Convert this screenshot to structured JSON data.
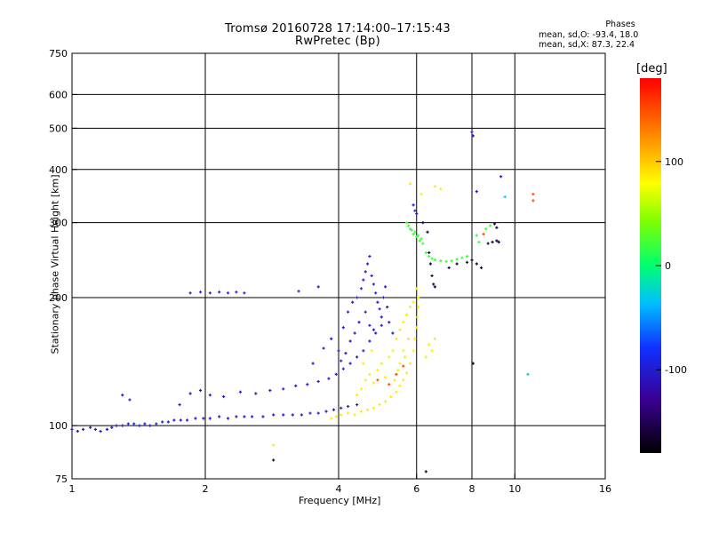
{
  "chart_data": {
    "type": "scatter",
    "title": "Tromsø 20160728 17:14:00–17:15:43",
    "subtitle": "RwPretec (Bp)",
    "xlabel": "Frequency [MHz]",
    "ylabel": "Stationary phase Virtual Height [km]",
    "x_scale": "log",
    "y_scale": "log",
    "xlim": [
      1,
      16
    ],
    "ylim": [
      75,
      750
    ],
    "x_ticks": [
      1,
      2,
      4,
      6,
      8,
      10,
      16
    ],
    "x_tick_labels": [
      "1",
      "2",
      "4",
      "6",
      "8",
      "10",
      "16"
    ],
    "y_ticks": [
      75,
      100,
      200,
      300,
      400,
      500,
      600,
      750
    ],
    "y_tick_labels": [
      "75",
      "100",
      "200",
      "300",
      "400",
      "500",
      "600",
      "750"
    ],
    "grid": true,
    "phase_header": {
      "title": "Phases",
      "o_line": "mean, sd,O: -93.4, 18.0",
      "x_line": "mean, sd,X:  87.3, 22.4"
    },
    "colorbar": {
      "unit": "[deg]",
      "range": [
        -180,
        180
      ],
      "ticks": [
        100,
        0,
        -100
      ],
      "tick_labels": [
        "100",
        "0",
        "-100"
      ]
    },
    "series": [
      {
        "color_phase_deg": -100,
        "points": [
          [
            1.0,
            98
          ],
          [
            1.03,
            97
          ],
          [
            1.06,
            98
          ],
          [
            1.1,
            99
          ],
          [
            1.13,
            98
          ],
          [
            1.16,
            97
          ],
          [
            1.2,
            98
          ],
          [
            1.23,
            99
          ],
          [
            1.26,
            100
          ],
          [
            1.3,
            100
          ],
          [
            1.34,
            101
          ],
          [
            1.38,
            101
          ],
          [
            1.42,
            100
          ],
          [
            1.46,
            101
          ],
          [
            1.5,
            100
          ],
          [
            1.55,
            101
          ],
          [
            1.6,
            102
          ],
          [
            1.65,
            102
          ],
          [
            1.7,
            103
          ],
          [
            1.76,
            103
          ],
          [
            1.82,
            103
          ],
          [
            1.9,
            104
          ],
          [
            1.98,
            104
          ],
          [
            2.05,
            104
          ],
          [
            2.15,
            105
          ],
          [
            2.25,
            104
          ],
          [
            2.35,
            105
          ],
          [
            2.45,
            105
          ],
          [
            2.55,
            105
          ],
          [
            2.7,
            105
          ],
          [
            2.85,
            106
          ],
          [
            3.0,
            106
          ],
          [
            3.15,
            106
          ],
          [
            3.3,
            106
          ],
          [
            3.45,
            107
          ],
          [
            3.6,
            107
          ],
          [
            3.75,
            108
          ],
          [
            3.9,
            109
          ],
          [
            4.05,
            110
          ],
          [
            4.2,
            111
          ],
          [
            4.4,
            112
          ],
          [
            1.3,
            118
          ],
          [
            1.35,
            115
          ],
          [
            1.75,
            112
          ],
          [
            1.85,
            119
          ],
          [
            1.95,
            121
          ],
          [
            2.05,
            118
          ],
          [
            2.2,
            117
          ],
          [
            2.4,
            120
          ],
          [
            2.6,
            119
          ],
          [
            2.8,
            121
          ],
          [
            3.0,
            122
          ],
          [
            3.2,
            124
          ],
          [
            3.4,
            125
          ],
          [
            3.6,
            127
          ],
          [
            3.8,
            129
          ],
          [
            3.95,
            132
          ],
          [
            4.1,
            136
          ],
          [
            4.25,
            140
          ],
          [
            4.4,
            145
          ],
          [
            4.55,
            150
          ],
          [
            4.7,
            158
          ],
          [
            4.85,
            165
          ],
          [
            5.0,
            172
          ],
          [
            1.85,
            205
          ],
          [
            1.95,
            206
          ],
          [
            2.05,
            205
          ],
          [
            2.15,
            206
          ],
          [
            2.25,
            205
          ],
          [
            2.35,
            206
          ],
          [
            2.45,
            205
          ],
          [
            3.25,
            207
          ],
          [
            3.6,
            212
          ],
          [
            3.5,
            140
          ],
          [
            3.7,
            152
          ],
          [
            3.85,
            160
          ],
          [
            4.0,
            150
          ],
          [
            4.1,
            170
          ],
          [
            4.2,
            185
          ],
          [
            4.3,
            195
          ],
          [
            4.4,
            200
          ],
          [
            4.5,
            210
          ],
          [
            4.55,
            220
          ],
          [
            4.6,
            230
          ],
          [
            4.65,
            240
          ],
          [
            4.7,
            250
          ],
          [
            4.75,
            225
          ],
          [
            4.8,
            215
          ],
          [
            4.85,
            205
          ],
          [
            4.9,
            195
          ],
          [
            4.95,
            188
          ],
          [
            5.0,
            180
          ],
          [
            5.05,
            200
          ],
          [
            5.1,
            212
          ],
          [
            5.15,
            190
          ],
          [
            4.45,
            175
          ],
          [
            4.35,
            165
          ],
          [
            4.25,
            158
          ],
          [
            4.15,
            148
          ],
          [
            4.05,
            142
          ],
          [
            5.2,
            175
          ],
          [
            5.3,
            165
          ],
          [
            4.6,
            185
          ],
          [
            4.7,
            172
          ],
          [
            4.8,
            168
          ],
          [
            5.9,
            330
          ],
          [
            5.95,
            320
          ],
          [
            6.0,
            315
          ],
          [
            8.0,
            490
          ],
          [
            8.05,
            480
          ],
          [
            9.3,
            385
          ],
          [
            8.2,
            355
          ]
        ]
      },
      {
        "color_phase_deg": 87,
        "points": [
          [
            3.85,
            104
          ],
          [
            3.95,
            105
          ],
          [
            4.05,
            106
          ],
          [
            4.2,
            107
          ],
          [
            4.35,
            106
          ],
          [
            4.5,
            108
          ],
          [
            4.65,
            109
          ],
          [
            4.8,
            110
          ],
          [
            4.95,
            112
          ],
          [
            5.1,
            114
          ],
          [
            5.25,
            117
          ],
          [
            5.4,
            120
          ],
          [
            5.5,
            124
          ],
          [
            5.6,
            128
          ],
          [
            5.7,
            133
          ],
          [
            5.8,
            140
          ],
          [
            5.9,
            150
          ],
          [
            5.95,
            160
          ],
          [
            6.0,
            170
          ],
          [
            6.02,
            180
          ],
          [
            6.05,
            190
          ],
          [
            6.05,
            200
          ],
          [
            6.0,
            210
          ],
          [
            4.4,
            118
          ],
          [
            4.5,
            122
          ],
          [
            4.6,
            128
          ],
          [
            4.7,
            132
          ],
          [
            4.8,
            126
          ],
          [
            4.9,
            135
          ],
          [
            5.0,
            140
          ],
          [
            5.1,
            130
          ],
          [
            5.2,
            145
          ],
          [
            5.3,
            150
          ],
          [
            5.4,
            160
          ],
          [
            5.5,
            168
          ],
          [
            5.6,
            175
          ],
          [
            5.7,
            182
          ],
          [
            5.5,
            140
          ],
          [
            5.6,
            150
          ],
          [
            5.8,
            190
          ],
          [
            5.9,
            195
          ],
          [
            5.75,
            160
          ],
          [
            5.65,
            145
          ],
          [
            5.45,
            135
          ],
          [
            5.35,
            128
          ],
          [
            4.55,
            140
          ],
          [
            4.75,
            150
          ],
          [
            6.4,
            155
          ],
          [
            6.5,
            150
          ],
          [
            6.3,
            145
          ],
          [
            6.6,
            160
          ],
          [
            5.8,
            370
          ],
          [
            6.15,
            350
          ],
          [
            2.85,
            90
          ],
          [
            6.6,
            365
          ],
          [
            6.8,
            360
          ]
        ]
      },
      {
        "color_phase_deg": 20,
        "points": [
          [
            5.7,
            300
          ],
          [
            5.8,
            290
          ],
          [
            5.9,
            282
          ],
          [
            6.0,
            278
          ],
          [
            6.1,
            272
          ],
          [
            6.2,
            268
          ],
          [
            5.75,
            295
          ],
          [
            5.85,
            288
          ],
          [
            5.95,
            285
          ],
          [
            6.05,
            280
          ],
          [
            6.15,
            275
          ],
          [
            6.3,
            255
          ],
          [
            6.4,
            250
          ],
          [
            6.5,
            247
          ],
          [
            6.6,
            245
          ],
          [
            6.8,
            244
          ],
          [
            7.0,
            243
          ],
          [
            7.2,
            244
          ],
          [
            7.4,
            246
          ],
          [
            7.6,
            248
          ],
          [
            7.8,
            250
          ],
          [
            8.2,
            280
          ],
          [
            8.6,
            290
          ],
          [
            8.8,
            295
          ],
          [
            8.3,
            270
          ]
        ]
      },
      {
        "color_phase_deg": -160,
        "points": [
          [
            2.85,
            83
          ],
          [
            6.3,
            78
          ],
          [
            6.4,
            255
          ],
          [
            6.45,
            240
          ],
          [
            6.5,
            225
          ],
          [
            6.55,
            215
          ],
          [
            6.6,
            212
          ],
          [
            7.1,
            235
          ],
          [
            7.4,
            240
          ],
          [
            7.8,
            242
          ],
          [
            8.0,
            245
          ],
          [
            8.2,
            240
          ],
          [
            8.4,
            235
          ],
          [
            8.7,
            268
          ],
          [
            8.9,
            270
          ],
          [
            9.1,
            272
          ],
          [
            9.2,
            270
          ],
          [
            9.0,
            298
          ],
          [
            9.1,
            292
          ],
          [
            8.05,
            140
          ],
          [
            6.2,
            300
          ],
          [
            6.35,
            285
          ]
        ]
      },
      {
        "color_phase_deg": 150,
        "points": [
          [
            11.0,
            350
          ],
          [
            11.0,
            338
          ],
          [
            4.9,
            128
          ],
          [
            5.2,
            125
          ],
          [
            5.4,
            132
          ],
          [
            5.6,
            138
          ],
          [
            8.5,
            282
          ]
        ]
      },
      {
        "color_phase_deg": -30,
        "points": [
          [
            10.7,
            132
          ],
          [
            9.5,
            345
          ]
        ]
      }
    ]
  }
}
